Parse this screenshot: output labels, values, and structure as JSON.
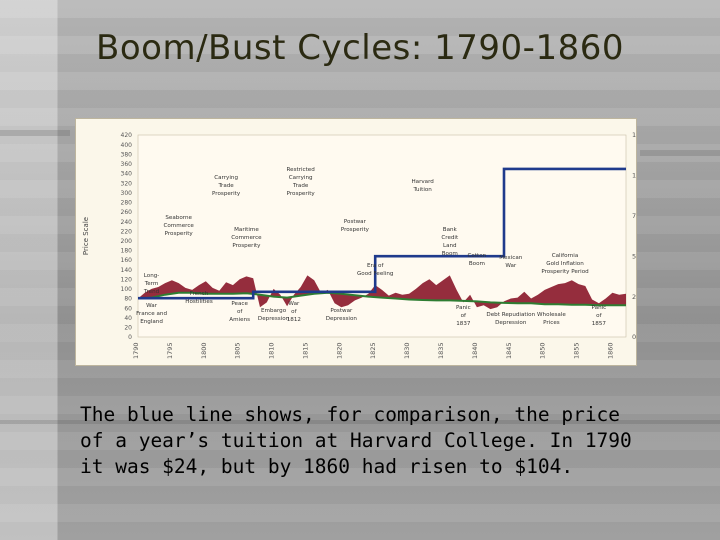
{
  "slide": {
    "title": "Boom/Bust Cycles:  1790-1860",
    "caption_lines": [
      "The blue line shows, for comparison, the price",
      "of a year’s tuition at Harvard College.  In 1790",
      "it was $24, but by 1860 had risen to $104."
    ]
  },
  "colors": {
    "tuition_line": "#1f3a8c",
    "prosperity_fill": "#8c1b2e",
    "trend_line": "#2e7d32",
    "panel_bg": "#fbf7ea",
    "title_color": "#2b2a12"
  },
  "chart_data": {
    "type": "line",
    "title": "",
    "ylabel": "Price Scale",
    "xlim": [
      1790,
      1862
    ],
    "ylim_left": [
      0,
      420
    ],
    "ylim_right": [
      0,
      125
    ],
    "x_ticks": [
      "1790",
      "1795",
      "1800",
      "1805",
      "1810",
      "1815",
      "1820",
      "1825",
      "1830",
      "1835",
      "1840",
      "1845",
      "1850",
      "1855",
      "1860"
    ],
    "y_ticks_left": [
      "0",
      "20",
      "40",
      "60",
      "80",
      "100",
      "120",
      "140",
      "160",
      "180",
      "200",
      "220",
      "240",
      "260",
      "280",
      "300",
      "320",
      "340",
      "360",
      "380",
      "400",
      "420"
    ],
    "y_ticks_right": [
      "0",
      "25",
      "50",
      "75",
      "100",
      "125"
    ],
    "tuition_series": {
      "x": [
        1790,
        1807,
        1807,
        1825,
        1825,
        1844,
        1844,
        1862
      ],
      "y": [
        24,
        24,
        28,
        28,
        50,
        50,
        104,
        104
      ]
    },
    "trend_series": {
      "x": [
        1790,
        1792,
        1794,
        1796,
        1798,
        1800,
        1802,
        1804,
        1806,
        1808,
        1810,
        1812,
        1814,
        1816,
        1818,
        1820,
        1822,
        1824,
        1826,
        1828,
        1830,
        1832,
        1834,
        1836,
        1838,
        1840,
        1842,
        1844,
        1846,
        1848,
        1850,
        1852,
        1854,
        1856,
        1858,
        1860,
        1862
      ],
      "y": [
        80,
        82,
        88,
        92,
        92,
        90,
        90,
        90,
        91,
        88,
        84,
        82,
        86,
        90,
        92,
        90,
        87,
        84,
        82,
        80,
        78,
        77,
        76,
        76,
        75,
        74,
        72,
        71,
        70,
        70,
        68,
        68,
        67,
        67,
        66,
        66,
        66
      ]
    },
    "activity_series": {
      "x": [
        1790,
        1791,
        1792,
        1793,
        1794,
        1795,
        1796,
        1797,
        1798,
        1799,
        1800,
        1801,
        1802,
        1803,
        1804,
        1805,
        1806,
        1807,
        1808,
        1809,
        1810,
        1811,
        1812,
        1813,
        1814,
        1815,
        1816,
        1817,
        1818,
        1819,
        1820,
        1821,
        1822,
        1823,
        1824,
        1825,
        1826,
        1827,
        1828,
        1829,
        1830,
        1831,
        1832,
        1833,
        1834,
        1835,
        1836,
        1837,
        1838,
        1839,
        1840,
        1841,
        1842,
        1843,
        1844,
        1845,
        1846,
        1847,
        1848,
        1849,
        1850,
        1851,
        1852,
        1853,
        1854,
        1855,
        1856,
        1857,
        1858,
        1859,
        1860,
        1861,
        1862
      ],
      "y": [
        80,
        92,
        100,
        104,
        112,
        118,
        112,
        102,
        98,
        108,
        116,
        102,
        96,
        114,
        108,
        120,
        126,
        122,
        62,
        72,
        100,
        88,
        64,
        88,
        104,
        128,
        118,
        92,
        98,
        70,
        62,
        66,
        76,
        82,
        90,
        108,
        98,
        86,
        92,
        88,
        90,
        100,
        112,
        120,
        108,
        118,
        128,
        98,
        72,
        88,
        62,
        66,
        58,
        62,
        74,
        80,
        82,
        94,
        80,
        88,
        98,
        104,
        110,
        112,
        118,
        110,
        106,
        78,
        70,
        80,
        92,
        88,
        90
      ]
    },
    "annotations_upper": [
      {
        "year": 1796,
        "label_lines": [
          "Seaborne",
          "Commerce",
          "Prosperity"
        ]
      },
      {
        "year": 1803,
        "label_lines": [
          "Carrying",
          "Trade",
          "Prosperity"
        ]
      },
      {
        "year": 1806,
        "label_lines": [
          "Maritime",
          "Commerce",
          "Prosperity"
        ]
      },
      {
        "year": 1814,
        "label_lines": [
          "Restricted",
          "Carrying",
          "Trade",
          "Prosperity"
        ]
      },
      {
        "year": 1822,
        "label_lines": [
          "Postwar",
          "Prosperity"
        ]
      },
      {
        "year": 1832,
        "label_lines": [
          "Harvard",
          "Tuition"
        ]
      },
      {
        "year": 1836,
        "label_lines": [
          "Bank",
          "Credit",
          "Land",
          "Boom"
        ]
      },
      {
        "year": 1840,
        "label_lines": [
          "Cotton",
          "Boom"
        ]
      },
      {
        "year": 1845,
        "label_lines": [
          "Mexican",
          "War"
        ]
      },
      {
        "year": 1853,
        "label_lines": [
          "California",
          "Gold Inflation",
          "Prosperity Period"
        ]
      },
      {
        "year": 1825,
        "label_lines": [
          "Era of",
          "Good Feeling"
        ]
      },
      {
        "year": 1792,
        "label_lines": [
          "Long-",
          "Term",
          "Trend"
        ]
      }
    ],
    "annotations_lower": [
      {
        "year": 1792,
        "label_lines": [
          "War",
          "France and",
          "England"
        ]
      },
      {
        "year": 1799,
        "label_lines": [
          "French",
          "Hostilities"
        ]
      },
      {
        "year": 1805,
        "label_lines": [
          "Peace",
          "of",
          "Amiens"
        ]
      },
      {
        "year": 1810,
        "label_lines": [
          "Embargo",
          "Depression"
        ]
      },
      {
        "year": 1813,
        "label_lines": [
          "War",
          "of",
          "1812"
        ]
      },
      {
        "year": 1820,
        "label_lines": [
          "Postwar",
          "Depression"
        ]
      },
      {
        "year": 1838,
        "label_lines": [
          "Panic",
          "of",
          "1837"
        ]
      },
      {
        "year": 1845,
        "label_lines": [
          "Debt Repudiation",
          "Depression"
        ]
      },
      {
        "year": 1851,
        "label_lines": [
          "Wholesale",
          "Prices"
        ]
      },
      {
        "year": 1858,
        "label_lines": [
          "Panic",
          "of",
          "1857"
        ]
      }
    ]
  }
}
